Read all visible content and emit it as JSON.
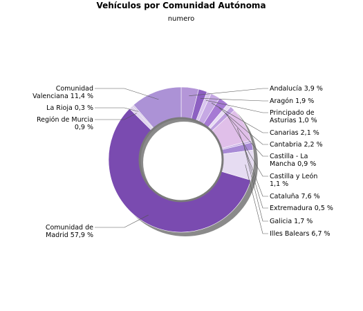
{
  "chart_data": {
    "type": "pie",
    "title": "Vehículos por Comunidad Autónoma",
    "subtitle": "numero",
    "slices": [
      {
        "name": "Andalucía",
        "value": 3.9,
        "label": [
          "Andalucía 3,9 %"
        ],
        "color": "#b496d8",
        "side": "right"
      },
      {
        "name": "Aragón",
        "value": 1.9,
        "label": [
          "Aragón 1,9 %"
        ],
        "color": "#8d60c2",
        "side": "right"
      },
      {
        "name": "Principado de Asturias",
        "value": 1.0,
        "label": [
          "Principado de",
          "Asturias 1,0 %"
        ],
        "color": "#d9c6ee",
        "side": "right"
      },
      {
        "name": "Canarias",
        "value": 2.1,
        "label": [
          "Canarias 2,1 %"
        ],
        "color": "#c6a9e4",
        "side": "right"
      },
      {
        "name": "Cantabria",
        "value": 2.2,
        "label": [
          "Cantabria 2,2 %"
        ],
        "color": "#a67ad4",
        "side": "right"
      },
      {
        "name": "Castilla - La Mancha",
        "value": 0.9,
        "label": [
          "Castilla - La",
          "Mancha 0,9 %"
        ],
        "color": "#e8dcf4",
        "side": "right"
      },
      {
        "name": "Castilla y León",
        "value": 1.1,
        "label": [
          "Castilla y León",
          "1,1 %"
        ],
        "color": "#bfa0e0",
        "side": "right"
      },
      {
        "name": "Cataluña",
        "value": 7.6,
        "label": [
          "Cataluña 7,6 %"
        ],
        "color": "#e0bfe9",
        "side": "right"
      },
      {
        "name": "Extremadura",
        "value": 0.5,
        "label": [
          "Extremadura 0,5 %"
        ],
        "color": "#cbb3e6",
        "side": "right"
      },
      {
        "name": "Galicia",
        "value": 1.7,
        "label": [
          "Galicia 1,7 %"
        ],
        "color": "#a88ad6",
        "side": "right"
      },
      {
        "name": "Illes Balears",
        "value": 6.7,
        "label": [
          "Illes Balears 6,7 %"
        ],
        "color": "#e6dcf2",
        "side": "right"
      },
      {
        "name": "Comunidad de Madrid",
        "value": 57.9,
        "label": [
          "Comunidad de",
          "Madrid 57,9 %"
        ],
        "color": "#7a4bb0",
        "side": "left"
      },
      {
        "name": "Región de Murcia",
        "value": 0.9,
        "label": [
          "Región de Murcia",
          "0,9 %"
        ],
        "color": "#e0d4ee",
        "side": "left"
      },
      {
        "name": "La Rioja",
        "value": 0.3,
        "label": [
          "La Rioja 0,3 %"
        ],
        "color": "#c9b8e0",
        "side": "left"
      },
      {
        "name": "Comunidad Valenciana",
        "value": 11.4,
        "label": [
          "Comunidad",
          "Valenciana 11,4 %"
        ],
        "color": "#ac92d6",
        "side": "left"
      }
    ]
  }
}
